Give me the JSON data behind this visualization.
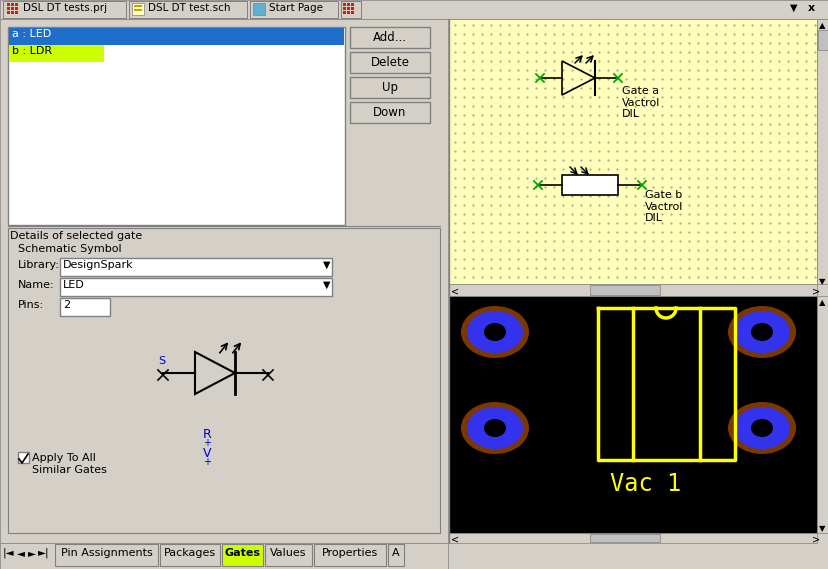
{
  "bg_color": "#d4d0c8",
  "list_item_a_bg": "#1e6fcc",
  "list_item_a_text": "a : LED",
  "list_item_b_bg": "#ccff00",
  "list_item_b_text": "b : LDR",
  "button_labels": [
    "Add...",
    "Delete",
    "Up",
    "Down"
  ],
  "details_label": "Details of selected gate",
  "schematic_label": "Schematic Symbol",
  "library_label": "Library:",
  "library_value": "DesignSpark",
  "name_label": "Name:",
  "name_value": "LED",
  "pins_label": "Pins:",
  "pins_value": "2",
  "apply_text": "Apply To All\nSimilar Gates",
  "schematic_panel_bg": "#ffffbb",
  "pcb_panel_bg": "#000000",
  "gate_a_text": "Gate a\nVactrol\nDIL",
  "gate_b_text": "Gate b\nVactrol\nDIL",
  "vac_text": "Vac 1",
  "tab_gates_bg": "#ccff00",
  "tab_labels": [
    "Pin Assignments",
    "Packages",
    "Gates",
    "Values",
    "Properties",
    "A"
  ],
  "cross_color": "#00aa00",
  "blue_pad_color": "#3333ee",
  "yellow_color": "#ffff00",
  "brown_color": "#7a3800",
  "white": "#ffffff",
  "gray": "#808080",
  "light_gray": "#c0c0c0",
  "dark_gray": "#d4d0c8",
  "blue_text": "#0000cc"
}
